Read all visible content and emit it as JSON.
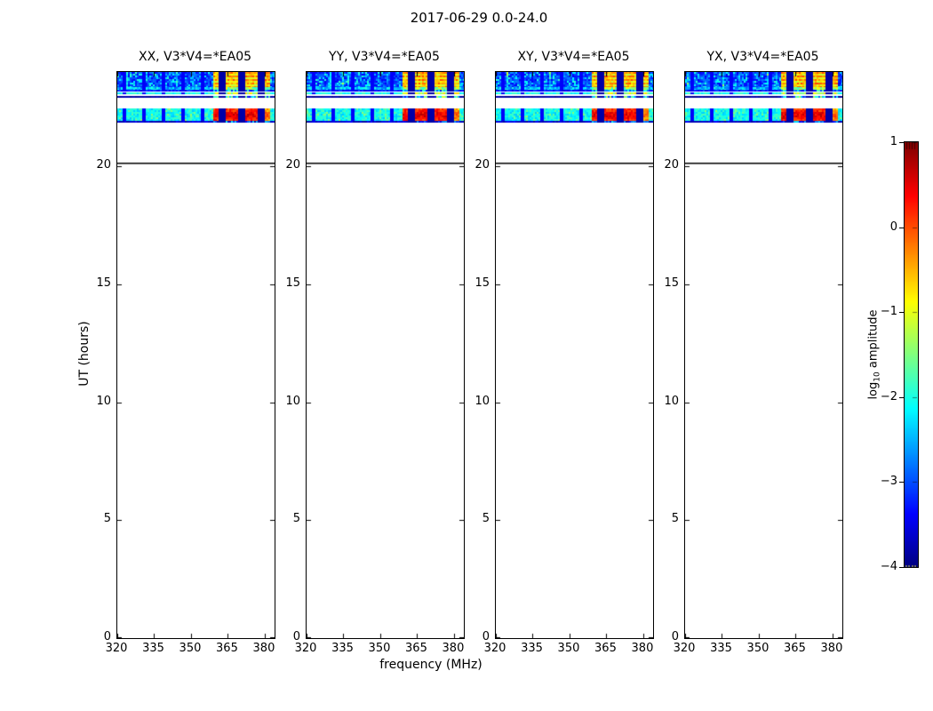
{
  "figure": {
    "title": "2017-06-29 0.0-24.0",
    "background": "#ffffff",
    "text_color": "#000000"
  },
  "chart_data": {
    "type": "heatmap",
    "title": "2017-06-29 0.0-24.0",
    "panels": [
      {
        "title": "XX, V3*V4=*EA05"
      },
      {
        "title": "YY, V3*V4=*EA05"
      },
      {
        "title": "XY, V3*V4=*EA05"
      },
      {
        "title": "YX, V3*V4=*EA05"
      }
    ],
    "xlabel": "frequency (MHz)",
    "ylabel": "UT (hours)",
    "x_ticks": [
      "320",
      "335",
      "350",
      "365",
      "380"
    ],
    "x_tick_values": [
      320,
      335,
      350,
      365,
      380
    ],
    "y_ticks": [
      "0",
      "5",
      "10",
      "15",
      "20"
    ],
    "y_tick_values": [
      0,
      5,
      10,
      15,
      20
    ],
    "xlim": [
      320,
      384
    ],
    "ylim": [
      0,
      24
    ],
    "grid": false,
    "colorbar": {
      "label": "log10 amplitude",
      "label_prefix": "log",
      "label_sub": "10",
      "label_suffix": " amplitude",
      "tick_labels": [
        "1",
        "0",
        "−1",
        "−2",
        "−3",
        "−4"
      ],
      "tick_values": [
        1,
        0,
        -1,
        -2,
        -3,
        -4
      ],
      "range": [
        -4,
        1
      ],
      "colormap": "jet"
    },
    "features": {
      "observation_start_hour": 20.16,
      "bright_region_mhz": [
        358.5,
        382
      ],
      "subband_separators_mhz": [
        322.5,
        330.5,
        338.5,
        346.5,
        354.5,
        362.5,
        370.5,
        378.5
      ],
      "bands": [
        {
          "name": "main-band",
          "h0": 23.36,
          "h1": 24.0,
          "base": -3.05,
          "noise": 0.4,
          "speckle": -2.2,
          "bright": {
            "v": -0.55,
            "noise": 0.4,
            "stripes": true
          }
        },
        {
          "name": "edge-speckle-row",
          "h0": 23.25,
          "h1": 23.36,
          "base": -2.4,
          "noise": 0.5,
          "speckle": null,
          "bright": {
            "v": -1.4,
            "noise": 0.6
          }
        },
        {
          "name": "dark-row",
          "h0": 23.17,
          "h1": 23.25,
          "base": -3.3,
          "noise": 0.3,
          "speckle": null,
          "bright": {
            "v": -2.6,
            "noise": 0.9
          }
        },
        {
          "name": "cyan-row",
          "h0": 23.04,
          "h1": 23.12,
          "base": -2.05,
          "noise": 0.25,
          "speckle": null,
          "bright": {
            "v": -1.15,
            "noise": 0.55
          }
        },
        {
          "name": "navy-row",
          "h0": 22.89,
          "h1": 22.98,
          "base": -3.85,
          "noise": 0.12,
          "speckle": null,
          "bright": {
            "v": -2.3,
            "noise": 1.2
          }
        },
        {
          "name": "second-band",
          "h0": 21.93,
          "h1": 22.47,
          "base": -2.1,
          "noise": 0.3,
          "speckle": -1.7,
          "bright": {
            "v": 0.05,
            "noise": 0.3,
            "blobs": true
          }
        },
        {
          "name": "dark-row-2",
          "h0": 21.87,
          "h1": 21.93,
          "base": -3.6,
          "noise": 0.25,
          "speckle": null,
          "bright": {
            "v": -3.0,
            "noise": 0.8
          }
        }
      ]
    }
  }
}
